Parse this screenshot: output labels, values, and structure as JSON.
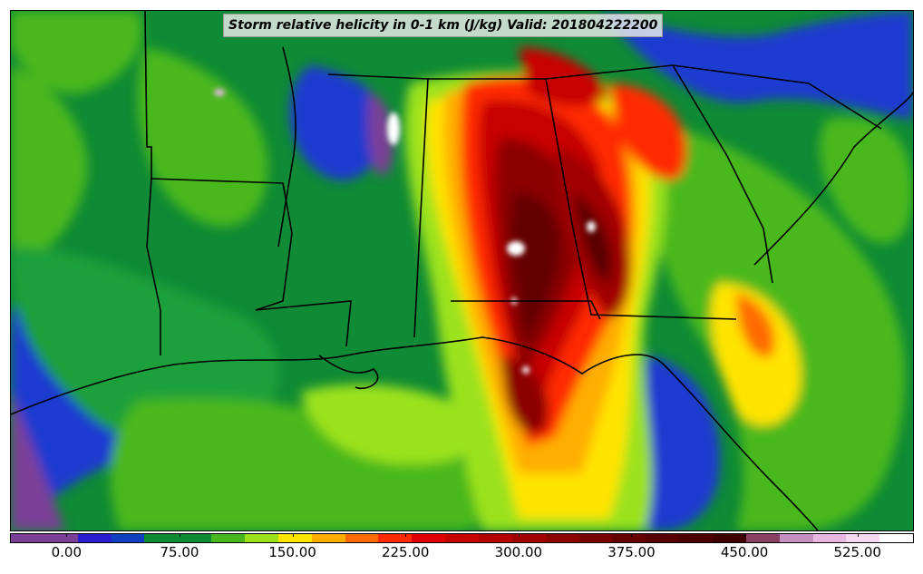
{
  "title": "Storm relative helicity in 0-1 km (J/kg) Valid: 201804222200",
  "colorbar": {
    "colors": [
      "#7b3f98",
      "#7b3f98",
      "#2a1fd0",
      "#1040c0",
      "#0f8a35",
      "#0f8a35",
      "#48b81e",
      "#9be21a",
      "#ffe400",
      "#ffae00",
      "#ff6a00",
      "#ff2a00",
      "#e00000",
      "#c80000",
      "#b40000",
      "#a00000",
      "#8c0000",
      "#780000",
      "#640000",
      "#580000",
      "#4c0000",
      "#400000",
      "#8a4060",
      "#c890c0",
      "#e8b8e0",
      "#f8d8f0",
      "#ffffff"
    ],
    "tick_labels": [
      "0.00",
      "75.00",
      "150.00",
      "225.00",
      "300.00",
      "375.00",
      "450.00",
      "525.00"
    ],
    "tick_values": [
      0,
      75,
      150,
      225,
      300,
      375,
      450,
      525
    ],
    "range": [
      -37.5,
      562.5
    ]
  }
}
